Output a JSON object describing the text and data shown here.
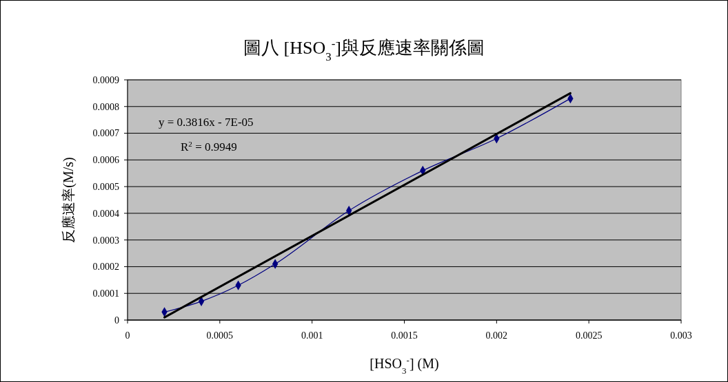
{
  "chart_data": {
    "type": "line",
    "title": "圖八  [HSO$_{3}$$^{-}$]與反應速率關係圖",
    "xlabel": "[HSO$_{3}$$^{-}$] (M)",
    "ylabel": "反應速率(M/s)",
    "annotations": [
      "y = 0.3816x - 7E-05",
      "R$^{2}$ = 0.9949"
    ],
    "xlim": [
      0,
      0.003
    ],
    "xticks": [
      0,
      0.0005,
      0.001,
      0.0015,
      0.002,
      0.0025,
      0.003
    ],
    "ylim": [
      0,
      0.0009
    ],
    "yticks": [
      0,
      0.0001,
      0.0002,
      0.0003,
      0.0004,
      0.0005,
      0.0006,
      0.0007,
      0.0008,
      0.0009
    ],
    "grid": "y",
    "marker": "diamond",
    "series": [
      {
        "color": "#000080",
        "x": [
          0.0002,
          0.0004,
          0.0006,
          0.0008,
          0.0012,
          0.0016,
          0.002,
          0.0024
        ],
        "values": [
          3e-05,
          7e-05,
          0.00013,
          0.00021,
          0.00041,
          0.00056,
          0.00068,
          0.00083
        ]
      },
      {
        "color": "#000000",
        "marker": "none",
        "x": [
          0.0002,
          0.0024
        ],
        "values": [
          1e-05,
          0.00085
        ]
      }
    ]
  }
}
